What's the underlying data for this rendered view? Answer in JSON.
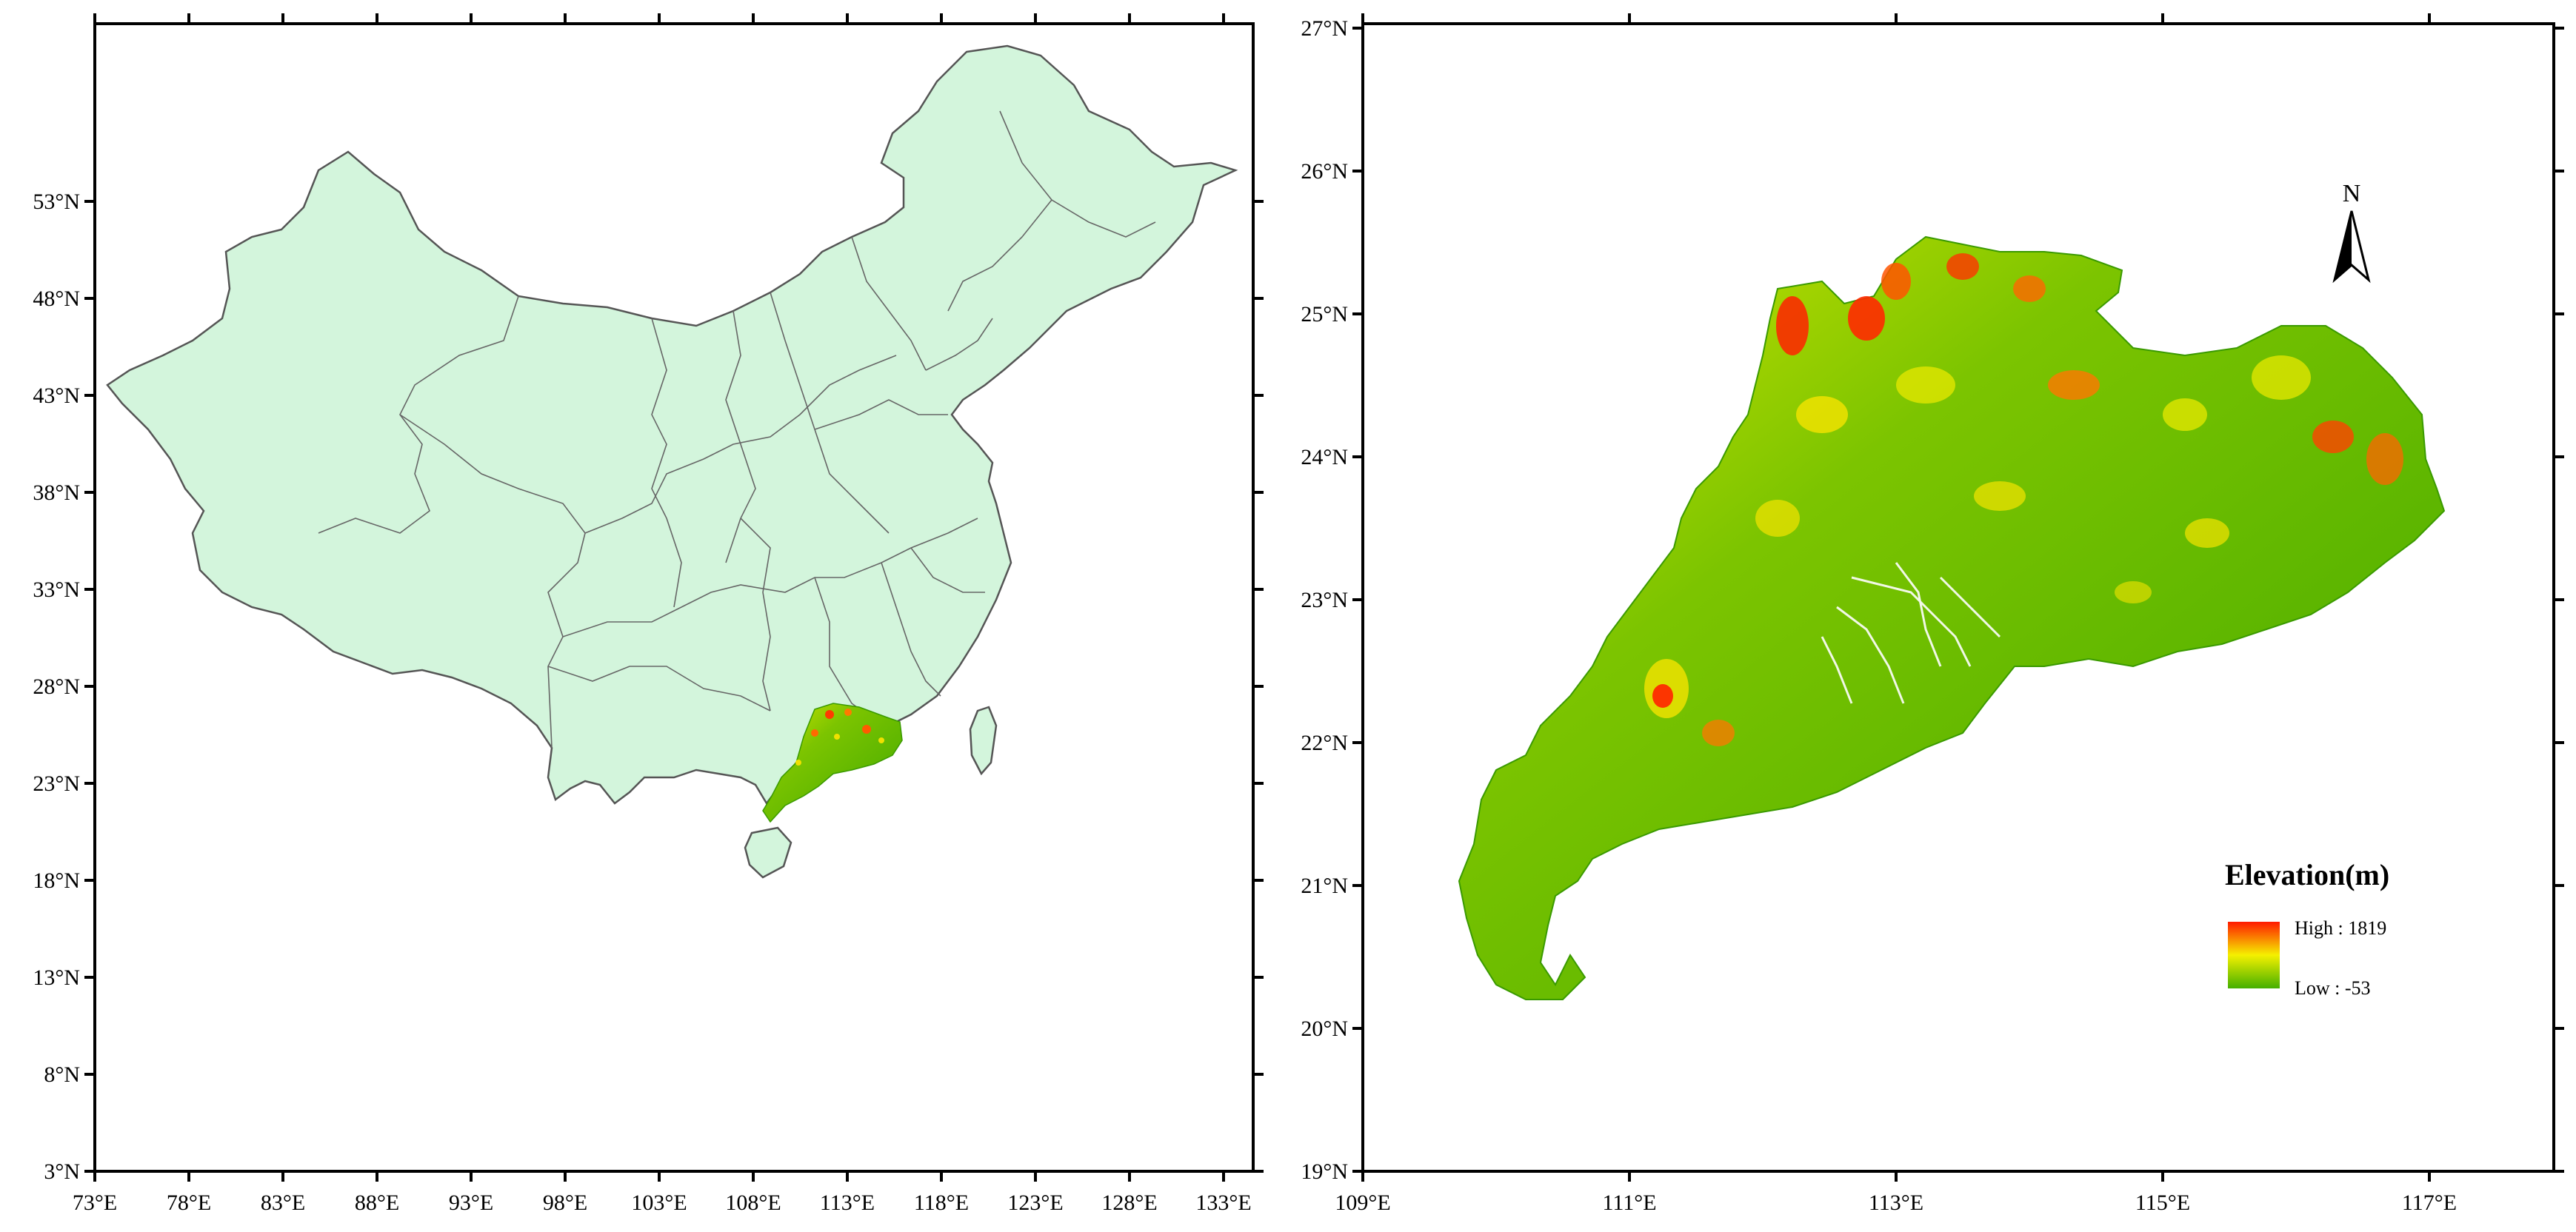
{
  "left_map": {
    "x_ticks": [
      "73°E",
      "78°E",
      "83°E",
      "88°E",
      "93°E",
      "98°E",
      "103°E",
      "108°E",
      "113°E",
      "118°E",
      "123°E",
      "128°E",
      "133°E"
    ],
    "y_ticks": [
      "3°N",
      "8°N",
      "13°N",
      "18°N",
      "23°N",
      "28°N",
      "33°N",
      "38°N",
      "43°N",
      "48°N",
      "53°N"
    ],
    "fill_color": "#d3f5dc",
    "border_color": "#555555",
    "highlight_region": "Guangdong elevation inset"
  },
  "right_map": {
    "x_ticks": [
      "109°E",
      "111°E",
      "113°E",
      "115°E",
      "117°E"
    ],
    "y_ticks": [
      "19°N",
      "20°N",
      "21°N",
      "22°N",
      "23°N",
      "24°N",
      "25°N",
      "26°N",
      "27°N"
    ],
    "north_arrow_label": "N",
    "legend": {
      "title": "Elevation(m)",
      "high_label": "High : 1819",
      "low_label": "Low : -53",
      "high_color": "#ff1a00",
      "mid_color": "#f5f000",
      "low_color": "#44b000"
    }
  }
}
